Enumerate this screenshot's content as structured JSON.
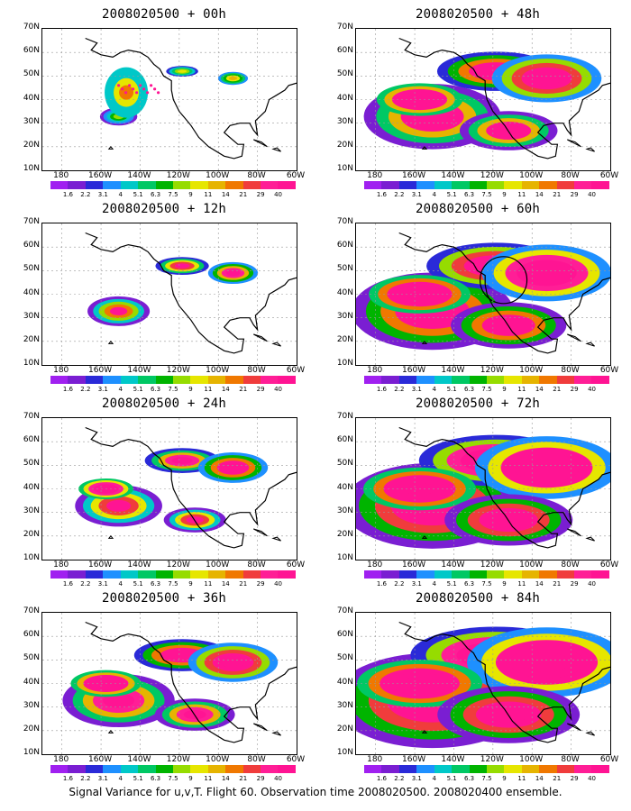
{
  "colorbar": {
    "labels": [
      "1.6",
      "2.2",
      "3.1",
      "4",
      "5.1",
      "6.3",
      "7.5",
      "9",
      "11",
      "14",
      "21",
      "29",
      "40"
    ],
    "colors": [
      "#a020f0",
      "#7a1ed2",
      "#2a2ad8",
      "#1e90ff",
      "#00c8c8",
      "#00c864",
      "#00b400",
      "#96dc00",
      "#e6e600",
      "#e6b400",
      "#f07800",
      "#f03c3c",
      "#ff1e96",
      "#ff1493"
    ]
  },
  "axes": {
    "lat_labels": [
      "70N",
      "60N",
      "50N",
      "40N",
      "30N",
      "20N",
      "10N"
    ],
    "lon_labels": [
      "180",
      "160W",
      "140W",
      "120W",
      "100W",
      "80W",
      "60W"
    ]
  },
  "panels": [
    {
      "id": "p00",
      "title": "2008020500 + 00h",
      "lead_hours": 0,
      "level": 0.15
    },
    {
      "id": "p48",
      "title": "2008020500 + 48h",
      "lead_hours": 48,
      "level": 0.55
    },
    {
      "id": "p12",
      "title": "2008020500 + 12h",
      "lead_hours": 12,
      "level": 0.25
    },
    {
      "id": "p60",
      "title": "2008020500 + 60h",
      "lead_hours": 60,
      "level": 0.65
    },
    {
      "id": "p24",
      "title": "2008020500 + 24h",
      "lead_hours": 24,
      "level": 0.35
    },
    {
      "id": "p72",
      "title": "2008020500 + 72h",
      "lead_hours": 72,
      "level": 0.72
    },
    {
      "id": "p36",
      "title": "2008020500 + 36h",
      "lead_hours": 36,
      "level": 0.45
    },
    {
      "id": "p84",
      "title": "2008020500 + 84h",
      "lead_hours": 84,
      "level": 0.8
    }
  ],
  "caption": "Signal Variance for u,v,T. Flight 60. Observation time 2008020500. 2008020400 ensemble."
}
